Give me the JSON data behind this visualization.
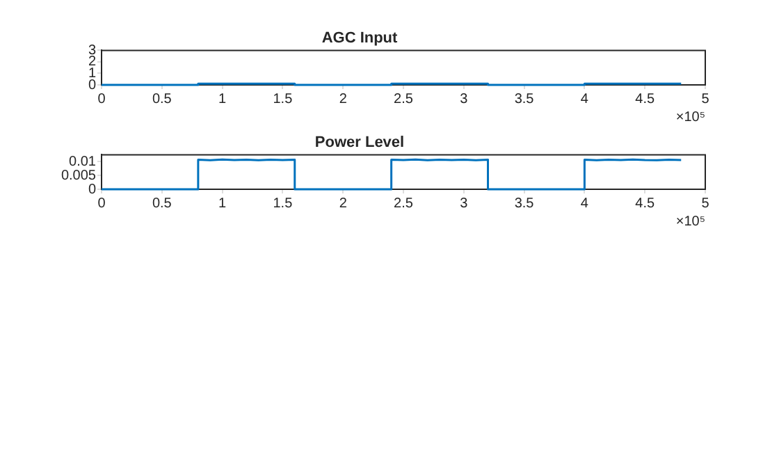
{
  "chart_data": [
    {
      "type": "line",
      "title": "AGC Input",
      "annotations": [
        "×10⁵"
      ],
      "xlim": [
        0,
        5
      ],
      "xticks": [
        0,
        0.5,
        1,
        1.5,
        2,
        2.5,
        3,
        3.5,
        4,
        4.5,
        5
      ],
      "ylim": [
        0,
        3
      ],
      "yticks": [
        0,
        1,
        2,
        3
      ],
      "grid": false,
      "x": [
        0,
        0.8,
        0.8,
        0.9,
        1,
        1.1,
        1.2,
        1.3,
        1.4,
        1.5,
        1.6,
        1.6,
        2.4,
        2.4,
        2.5,
        2.6,
        2.7,
        2.8,
        2.9,
        3,
        3.1,
        3.2,
        3.2,
        4,
        4,
        4.1,
        4.2,
        4.3,
        4.4,
        4.5,
        4.6,
        4.7,
        4.8
      ],
      "series": [
        {
          "color": "#0072bd",
          "values": [
            0,
            0,
            0.1,
            0.1,
            0.1,
            0.1,
            0.1,
            0.1,
            0.1,
            0.1,
            0.1,
            0,
            0,
            0.1,
            0.1,
            0.1,
            0.1,
            0.1,
            0.1,
            0.1,
            0.1,
            0.1,
            0,
            0,
            0.1,
            0.1,
            0.1,
            0.1,
            0.1,
            0.1,
            0.1,
            0.1,
            0.1
          ]
        }
      ]
    },
    {
      "type": "line",
      "title": "Power Level",
      "annotations": [
        "×10⁵"
      ],
      "xlim": [
        0,
        5
      ],
      "xticks": [
        0,
        0.5,
        1,
        1.5,
        2,
        2.5,
        3,
        3.5,
        4,
        4.5,
        5
      ],
      "ylim": [
        0,
        0.0125
      ],
      "yticks": [
        0,
        0.005,
        0.01
      ],
      "grid": false,
      "x": [
        0,
        0.8,
        0.8,
        0.9,
        1,
        1.1,
        1.2,
        1.3,
        1.4,
        1.5,
        1.6,
        1.6,
        2.4,
        2.4,
        2.5,
        2.6,
        2.7,
        2.8,
        2.9,
        3,
        3.1,
        3.2,
        3.2,
        4,
        4,
        4.1,
        4.2,
        4.3,
        4.4,
        4.5,
        4.6,
        4.7,
        4.8
      ],
      "series": [
        {
          "color": "#0072bd",
          "values": [
            0,
            0,
            0.0107,
            0.0105,
            0.0108,
            0.0106,
            0.0107,
            0.0105,
            0.0107,
            0.0106,
            0.0107,
            0,
            0,
            0.0107,
            0.0106,
            0.0108,
            0.0105,
            0.0107,
            0.0106,
            0.0107,
            0.0105,
            0.0107,
            0,
            0,
            0.0107,
            0.0105,
            0.0107,
            0.0106,
            0.0108,
            0.0106,
            0.0105,
            0.0107,
            0.0106
          ]
        }
      ]
    }
  ]
}
